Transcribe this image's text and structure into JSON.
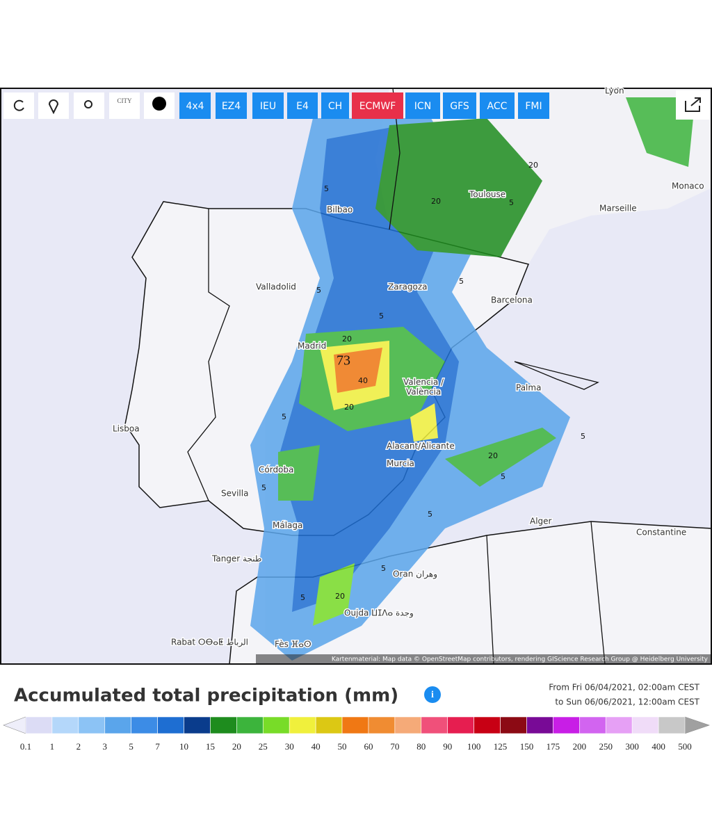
{
  "toolbar": {
    "city_icon": "CITY",
    "buttons": [
      "4x4",
      "EZ4",
      "IEU",
      "E4",
      "CH",
      "ECMWF",
      "ICN",
      "GFS",
      "ACC",
      "FMI"
    ],
    "active": 5,
    "button_color": "#1a8cf0",
    "active_color": "#e8304a"
  },
  "map": {
    "cities": [
      "Lyon",
      "Toulouse",
      "Bilbao",
      "Marseille",
      "Monaco",
      "Valladolid",
      "Zaragoza",
      "Barcelona",
      "Madrid",
      "Valencia /",
      "València",
      "Palma",
      "Lisboa",
      "Alacant/Alicante",
      "Murcia",
      "Córdoba",
      "Sevilla",
      "Málaga",
      "Alger",
      "Constantine",
      "Tanger طنجة",
      "Oran وهران",
      "Oujda ⵡⵊⴷⴰ وجدة",
      "Rabat ⵔⴱⴰⵟ الرباط",
      "Fès ⴼⴰⵙ"
    ],
    "contour_labels": [
      "5",
      "20",
      "20",
      "5",
      "5",
      "5",
      "5",
      "20",
      "40",
      "20",
      "73",
      "5",
      "5",
      "20",
      "5",
      "5",
      "5",
      "5",
      "20",
      "5"
    ],
    "attribution": "Kartenmaterial: Map data © OpenStreetMap contributors, rendering GIScience Research Group @ Heidelberg University"
  },
  "legend": {
    "title": "Accumulated total precipitation (mm)",
    "period": [
      "From Fri 06/04/2021, 02:00am CEST",
      "to Sun 06/06/2021, 12:00am CEST"
    ],
    "ticks": [
      0.1,
      1,
      2,
      3,
      5,
      7,
      10,
      15,
      20,
      25,
      30,
      40,
      50,
      60,
      70,
      80,
      90,
      100,
      125,
      150,
      175,
      200,
      250,
      300,
      400,
      500
    ],
    "colors": [
      "#dcdcf5",
      "#b4d7fa",
      "#8cc3f5",
      "#5aa5eb",
      "#3c8ce6",
      "#1e6ed2",
      "#0a3c8c",
      "#1e8c1e",
      "#3cb43c",
      "#78dc28",
      "#f0f03c",
      "#dcc814",
      "#f07814",
      "#f08c32",
      "#f5aa78",
      "#f0507a",
      "#e61e50",
      "#c80014",
      "#8c0a14",
      "#780a96",
      "#c81ee6",
      "#d264f0",
      "#e6a0f5",
      "#f0dcf8",
      "#c8c8c8"
    ],
    "under_color": "#eeeefa",
    "over_color": "#a0a0a0"
  }
}
